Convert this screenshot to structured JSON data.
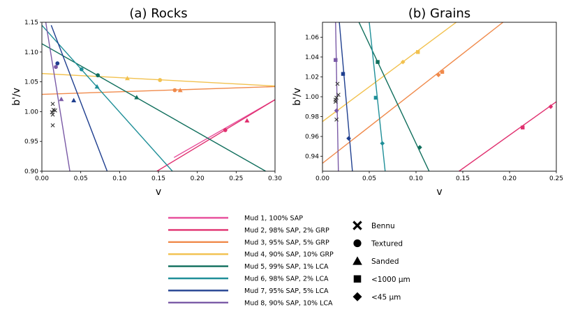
{
  "chart_data": [
    {
      "type": "line",
      "title": "(a) Rocks",
      "xlabel": "v",
      "ylabel": "b'/v",
      "xlim": [
        0,
        0.3
      ],
      "ylim": [
        0.9,
        1.15
      ],
      "xticks": [
        "0.00",
        "0.05",
        "0.10",
        "0.15",
        "0.20",
        "0.25",
        "0.30"
      ],
      "yticks": [
        "0.90",
        "0.95",
        "1.00",
        "1.05",
        "1.10",
        "1.15"
      ],
      "series": [
        {
          "name": "Mud 1, 100% SAP",
          "color": "#e8509c",
          "line": [
            [
              0.17,
              0.923
            ],
            [
              0.3,
              1.02
            ]
          ],
          "points": []
        },
        {
          "name": "Mud 2, 98% SAP, 2% GRP",
          "color": "#e0306f",
          "line": [
            [
              0.148,
              0.9
            ],
            [
              0.3,
              1.02
            ]
          ],
          "points": [
            {
              "marker": "circle",
              "x": 0.236,
              "y": 0.969
            },
            {
              "marker": "triangle",
              "x": 0.264,
              "y": 0.985
            }
          ]
        },
        {
          "name": "Mud 3, 95% SAP, 5% GRP",
          "color": "#f08a4b",
          "line": [
            [
              0.0,
              1.029
            ],
            [
              0.3,
              1.042
            ]
          ],
          "points": [
            {
              "marker": "circle",
              "x": 0.171,
              "y": 1.036
            },
            {
              "marker": "triangle",
              "x": 0.178,
              "y": 1.036
            }
          ]
        },
        {
          "name": "Mud 4, 90% SAP, 10% GRP",
          "color": "#f2c14e",
          "line": [
            [
              0.0,
              1.064
            ],
            [
              0.3,
              1.043
            ]
          ],
          "points": [
            {
              "marker": "triangle",
              "x": 0.11,
              "y": 1.056
            },
            {
              "marker": "circle",
              "x": 0.152,
              "y": 1.053
            }
          ]
        },
        {
          "name": "Mud 5, 99% SAP, 1% LCA",
          "color": "#0f6e5c",
          "line": [
            [
              0.0,
              1.114
            ],
            [
              0.288,
              0.9
            ]
          ],
          "points": [
            {
              "marker": "circle",
              "x": 0.072,
              "y": 1.061
            },
            {
              "marker": "triangle",
              "x": 0.122,
              "y": 1.024
            }
          ]
        },
        {
          "name": "Mud 6, 98% SAP, 2% LCA",
          "color": "#1f8f98",
          "line": [
            [
              0.0,
              1.145
            ],
            [
              0.168,
              0.9
            ]
          ],
          "points": [
            {
              "marker": "circle",
              "x": 0.051,
              "y": 1.071
            },
            {
              "marker": "triangle",
              "x": 0.071,
              "y": 1.042
            }
          ]
        },
        {
          "name": "Mud 7, 95% SAP, 5% LCA",
          "color": "#1f3f8f",
          "line": [
            [
              0.012,
              1.145
            ],
            [
              0.084,
              0.9
            ]
          ],
          "points": [
            {
              "marker": "circle",
              "x": 0.02,
              "y": 1.081
            },
            {
              "marker": "triangle",
              "x": 0.041,
              "y": 1.019
            }
          ]
        },
        {
          "name": "Mud 8, 90% SAP, 10% LCA",
          "color": "#7a5aa6",
          "line": [
            [
              0.005,
              1.15
            ],
            [
              0.036,
              0.9
            ]
          ],
          "points": [
            {
              "marker": "circle",
              "x": 0.018,
              "y": 1.075
            },
            {
              "marker": "triangle",
              "x": 0.025,
              "y": 1.021
            }
          ]
        }
      ],
      "bennu": [
        [
          0.014,
          1.013
        ],
        [
          0.015,
          1.003
        ],
        [
          0.013,
          0.999
        ],
        [
          0.014,
          0.995
        ],
        [
          0.017,
          1.002
        ],
        [
          0.014,
          0.977
        ]
      ]
    },
    {
      "type": "line",
      "title": "(b) Grains",
      "xlabel": "v",
      "ylabel": "b'/v",
      "xlim": [
        0,
        0.25
      ],
      "ylim": [
        0.925,
        1.075
      ],
      "xticks": [
        "0.00",
        "0.05",
        "0.10",
        "0.15",
        "0.20",
        "0.25"
      ],
      "yticks": [
        "0.94",
        "0.96",
        "0.98",
        "1.00",
        "1.02",
        "1.04",
        "1.06"
      ],
      "series": [
        {
          "name": "Mud 2, 98% SAP, 2% GRP",
          "color": "#e0306f",
          "line": [
            [
              0.146,
              0.925
            ],
            [
              0.25,
              0.995
            ]
          ],
          "points": [
            {
              "marker": "square",
              "x": 0.214,
              "y": 0.969
            },
            {
              "marker": "diamond",
              "x": 0.244,
              "y": 0.99
            }
          ]
        },
        {
          "name": "Mud 3, 95% SAP, 5% GRP",
          "color": "#f08a4b",
          "line": [
            [
              0.0,
              0.933
            ],
            [
              0.193,
              1.075
            ]
          ],
          "points": [
            {
              "marker": "diamond",
              "x": 0.124,
              "y": 1.022
            },
            {
              "marker": "square",
              "x": 0.128,
              "y": 1.025
            }
          ]
        },
        {
          "name": "Mud 4, 90% SAP, 10% GRP",
          "color": "#f2c14e",
          "line": [
            [
              0.0,
              0.975
            ],
            [
              0.143,
              1.075
            ]
          ],
          "points": [
            {
              "marker": "diamond",
              "x": 0.086,
              "y": 1.035
            },
            {
              "marker": "square",
              "x": 0.102,
              "y": 1.045
            }
          ]
        },
        {
          "name": "Mud 5, 99% SAP, 1% LCA",
          "color": "#0f6e5c",
          "line": [
            [
              0.039,
              1.075
            ],
            [
              0.114,
              0.925
            ]
          ],
          "points": [
            {
              "marker": "square",
              "x": 0.059,
              "y": 1.035
            },
            {
              "marker": "diamond",
              "x": 0.104,
              "y": 0.949
            }
          ]
        },
        {
          "name": "Mud 6, 98% SAP, 2% LCA",
          "color": "#1f8f98",
          "line": [
            [
              0.05,
              1.075
            ],
            [
              0.067,
              0.925
            ]
          ],
          "points": [
            {
              "marker": "square",
              "x": 0.057,
              "y": 0.999
            },
            {
              "marker": "diamond",
              "x": 0.064,
              "y": 0.953
            }
          ]
        },
        {
          "name": "Mud 7, 95% SAP, 5% LCA",
          "color": "#1f3f8f",
          "line": [
            [
              0.018,
              1.075
            ],
            [
              0.032,
              0.925
            ]
          ],
          "points": [
            {
              "marker": "square",
              "x": 0.022,
              "y": 1.023
            },
            {
              "marker": "diamond",
              "x": 0.028,
              "y": 0.958
            }
          ]
        },
        {
          "name": "Mud 8, 90% SAP, 10% LCA",
          "color": "#7a5aa6",
          "line": [
            [
              0.014,
              1.075
            ],
            [
              0.017,
              0.925
            ]
          ],
          "points": [
            {
              "marker": "square",
              "x": 0.014,
              "y": 1.037
            },
            {
              "marker": "diamond",
              "x": 0.015,
              "y": 0.986
            }
          ]
        }
      ],
      "bennu": [
        [
          0.016,
          1.013
        ],
        [
          0.017,
          1.002
        ],
        [
          0.015,
          0.999
        ],
        [
          0.014,
          0.997
        ],
        [
          0.014,
          0.995
        ],
        [
          0.015,
          0.977
        ]
      ]
    }
  ],
  "legend": {
    "lines": [
      {
        "label": "Mud 1, 100% SAP",
        "color": "#e8509c"
      },
      {
        "label": "Mud 2, 98% SAP, 2% GRP",
        "color": "#e0306f"
      },
      {
        "label": "Mud 3, 95% SAP, 5% GRP",
        "color": "#f08a4b"
      },
      {
        "label": "Mud 4, 90% SAP, 10% GRP",
        "color": "#f2c14e"
      },
      {
        "label": "Mud 5, 99% SAP, 1% LCA",
        "color": "#0f6e5c"
      },
      {
        "label": "Mud 6, 98% SAP, 2% LCA",
        "color": "#1f8f98"
      },
      {
        "label": "Mud 7, 95% SAP, 5% LCA",
        "color": "#1f3f8f"
      },
      {
        "label": "Mud 8, 90% SAP, 10% LCA",
        "color": "#7a5aa6"
      }
    ],
    "markers": [
      {
        "label": "Bennu",
        "marker": "x"
      },
      {
        "label": "Textured",
        "marker": "circle"
      },
      {
        "label": "Sanded",
        "marker": "triangle"
      },
      {
        "label": "<1000 μm",
        "marker": "square"
      },
      {
        "label": "<45 μm",
        "marker": "diamond"
      }
    ]
  }
}
